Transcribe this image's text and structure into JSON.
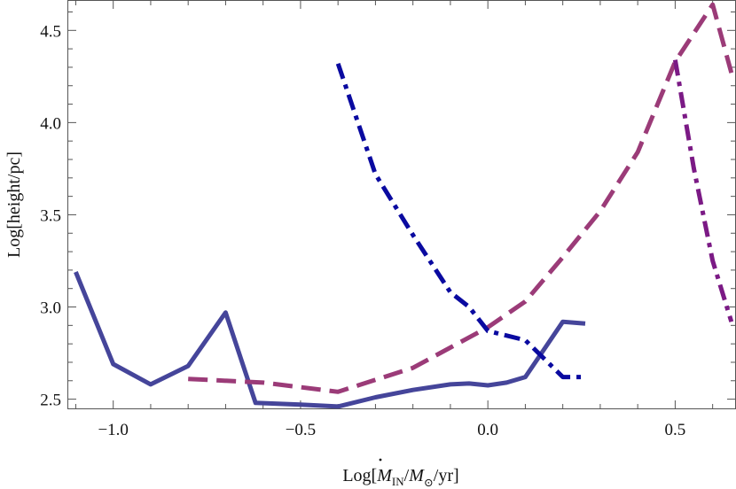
{
  "chart_data": {
    "type": "line",
    "title": "",
    "xlabel": {
      "prefix": "Log[",
      "dot_symbol": "M",
      "dot_subscript": "IN",
      "slash": "/",
      "sun_symbol": "M",
      "sun_subscript": "⊙",
      "suffix": "/yr]"
    },
    "ylabel": "Log[height/pc]",
    "xlim": [
      -1.12,
      0.66
    ],
    "ylim": [
      2.45,
      4.66
    ],
    "xticks": [
      -1.0,
      -0.5,
      0.0,
      0.5
    ],
    "xtick_labels": [
      "−1.0",
      "−0.5",
      "0.0",
      "0.5"
    ],
    "yticks": [
      2.5,
      3.0,
      3.5,
      4.0,
      4.5
    ],
    "ytick_labels": [
      "2.5",
      "3.0",
      "3.5",
      "4.0",
      "4.5"
    ],
    "grid": false,
    "series": [
      {
        "name": "solid",
        "style": "solid",
        "color": "#45459a",
        "x": [
          -1.1,
          -1.0,
          -0.9,
          -0.8,
          -0.7,
          -0.62,
          -0.5,
          -0.4,
          -0.3,
          -0.2,
          -0.1,
          -0.05,
          0.0,
          0.05,
          0.1,
          0.2,
          0.26
        ],
        "y": [
          3.19,
          2.69,
          2.58,
          2.68,
          2.97,
          2.48,
          2.47,
          2.46,
          2.51,
          2.55,
          2.58,
          2.585,
          2.575,
          2.59,
          2.62,
          2.92,
          2.91
        ]
      },
      {
        "name": "dashed",
        "style": "dashed",
        "color": "#9b3b78",
        "x": [
          -0.8,
          -0.6,
          -0.4,
          -0.2,
          0.0,
          0.1,
          0.2,
          0.3,
          0.4,
          0.5,
          0.6,
          0.65
        ],
        "y": [
          2.61,
          2.59,
          2.54,
          2.67,
          2.89,
          3.03,
          3.27,
          3.52,
          3.84,
          4.33,
          4.64,
          4.27
        ]
      },
      {
        "name": "dash-dot-blue",
        "style": "dashdot",
        "color": "#0a0aa0",
        "x": [
          -0.4,
          -0.3,
          -0.2,
          -0.1,
          -0.05,
          0.0,
          0.1,
          0.2,
          0.26
        ],
        "y": [
          4.32,
          3.72,
          3.39,
          3.08,
          3.0,
          2.87,
          2.82,
          2.62,
          2.62
        ]
      },
      {
        "name": "dash-dot-purple",
        "style": "dashdot",
        "color": "#7b1a85",
        "x": [
          0.5,
          0.55,
          0.6,
          0.65
        ],
        "y": [
          4.34,
          3.75,
          3.25,
          2.92
        ]
      }
    ]
  }
}
